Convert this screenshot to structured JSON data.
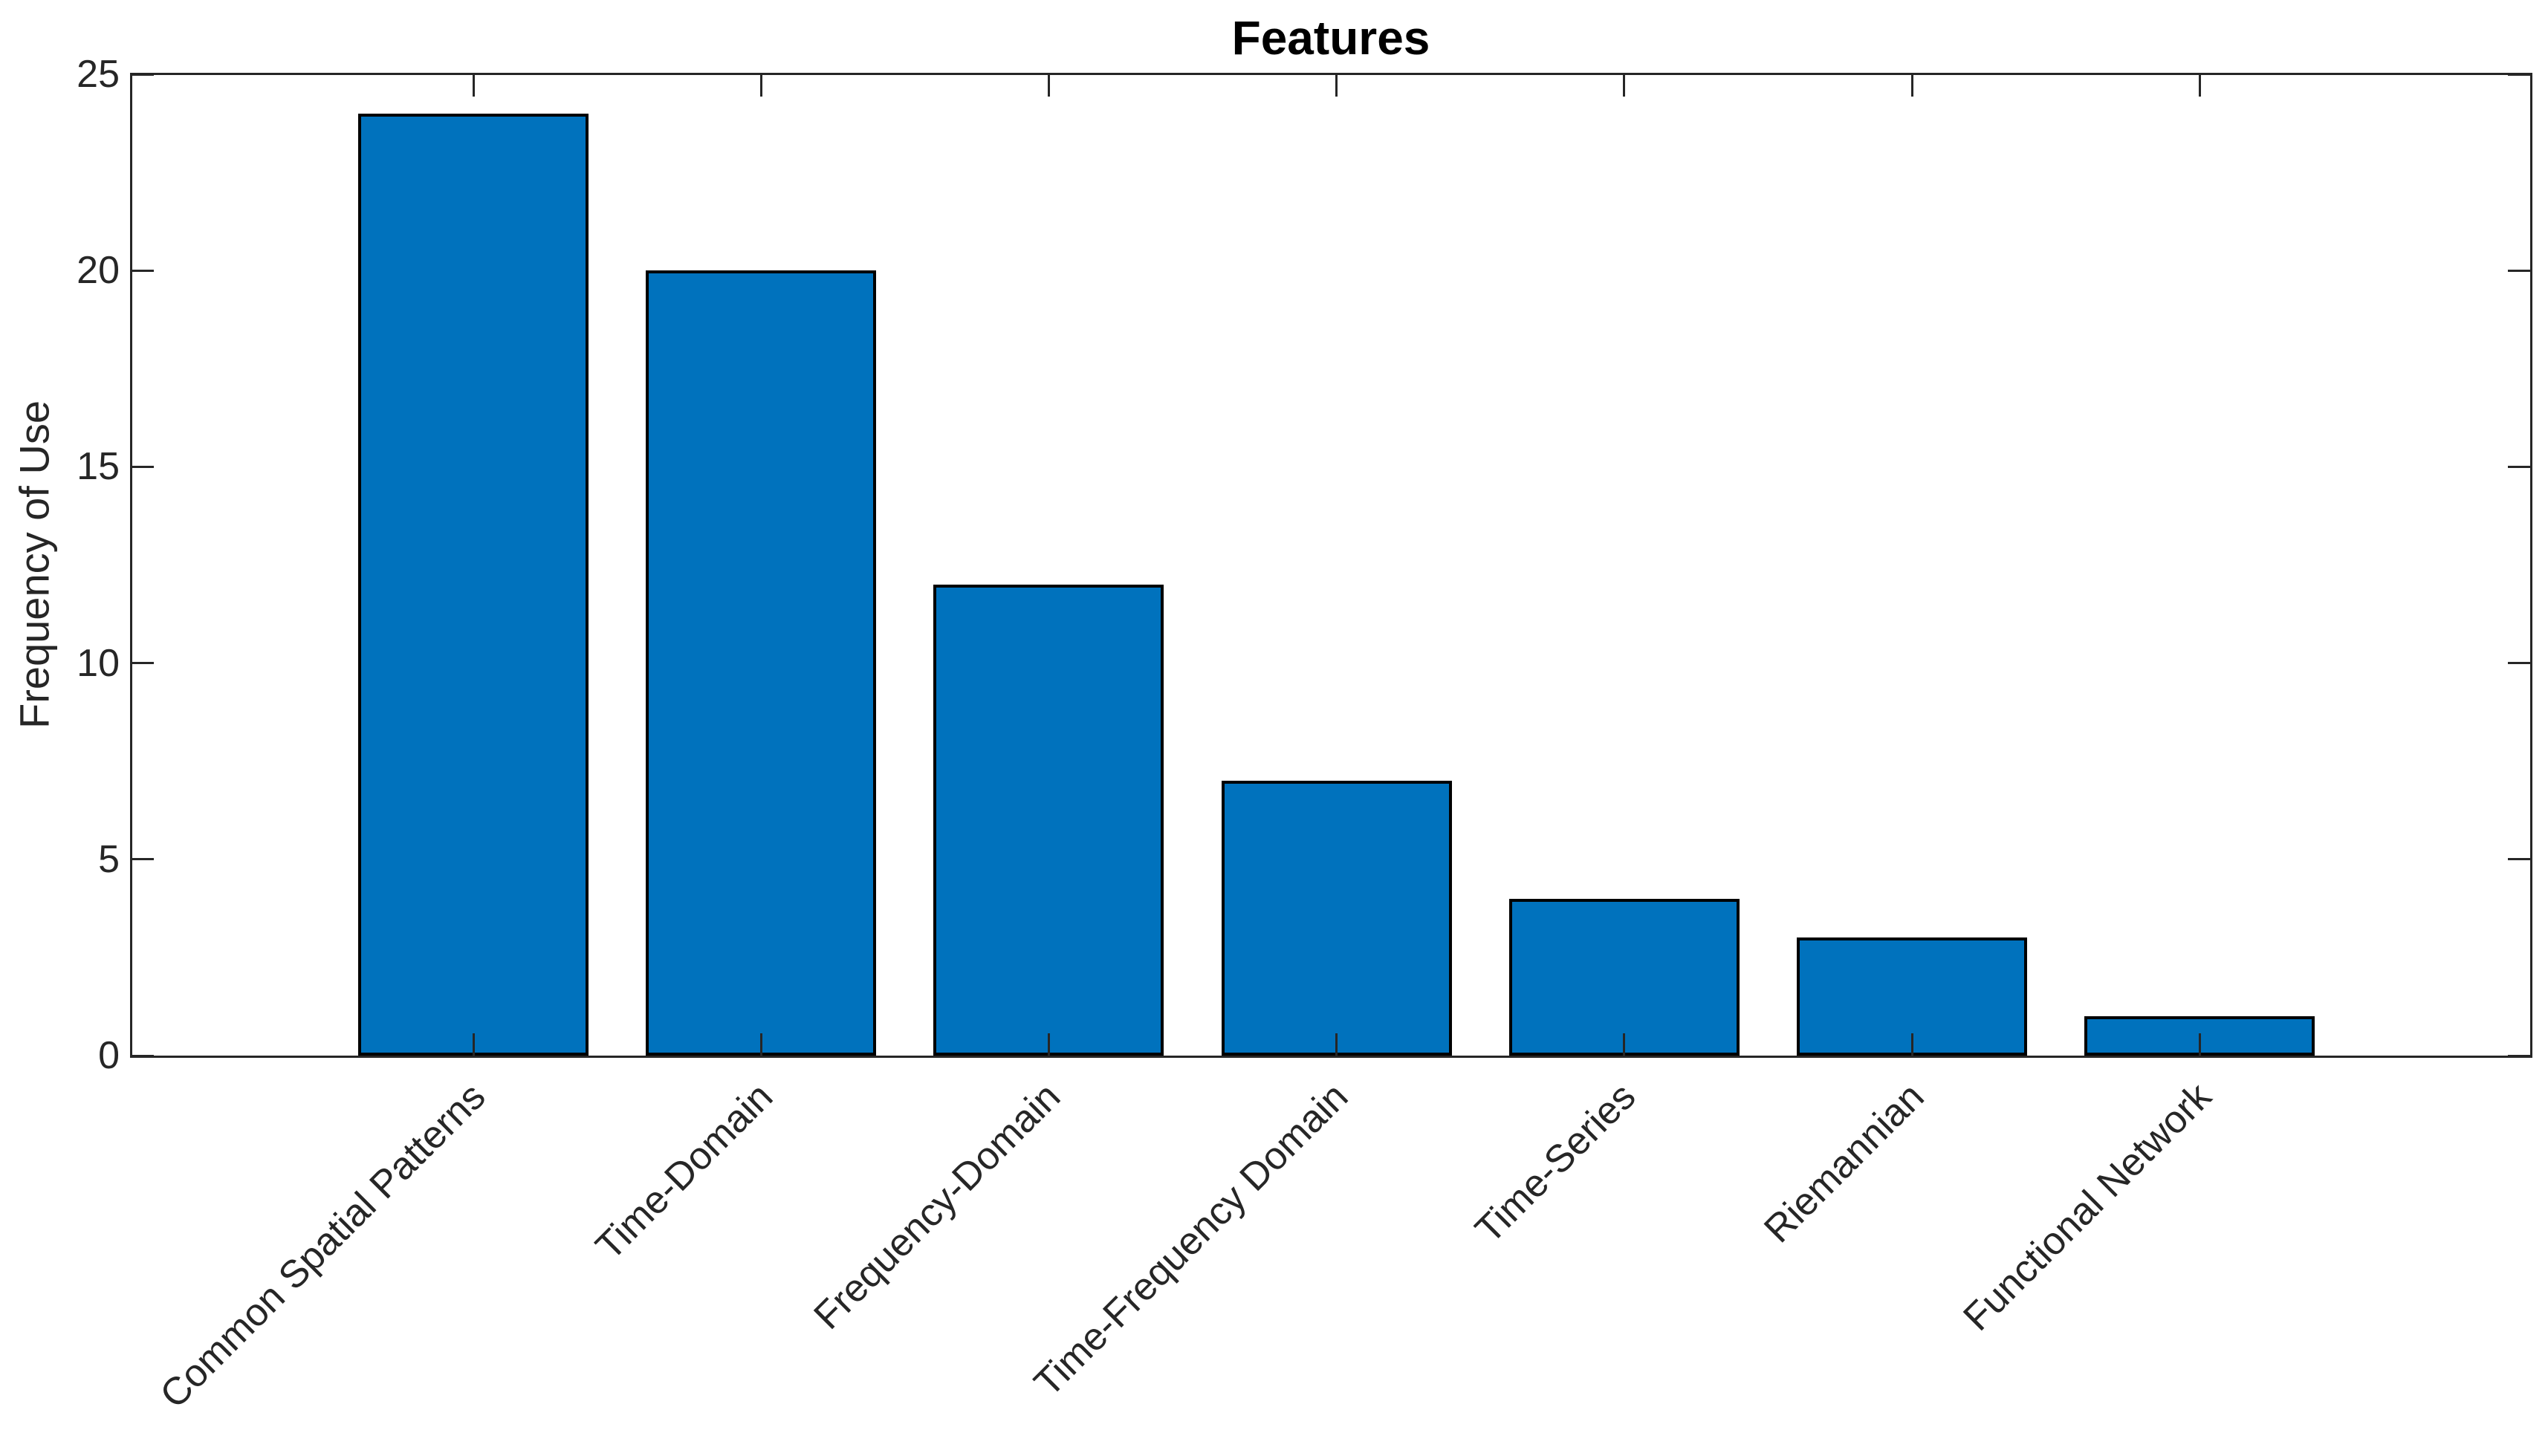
{
  "chart_data": {
    "type": "bar",
    "title": "Features",
    "categories": [
      "Common Spatial Patterns",
      "Time-Domain",
      "Frequency-Domain",
      "Time-Frequency Domain",
      "Time-Series",
      "Riemannian",
      "Functional Network"
    ],
    "values": [
      24,
      20,
      12,
      7,
      4,
      3,
      1
    ],
    "xlabel": "",
    "ylabel": "Frequency of Use",
    "ylim": [
      0,
      25
    ],
    "yticks": [
      0,
      5,
      10,
      15,
      20,
      25
    ],
    "x_tick_label_rotation_deg": 45,
    "grid": "off",
    "legend": "none",
    "colors": {
      "bar_fill": "#0072BD",
      "bar_edge": "#000000",
      "axis": "#262626",
      "title": "#000000",
      "background": "#FFFFFF"
    }
  }
}
